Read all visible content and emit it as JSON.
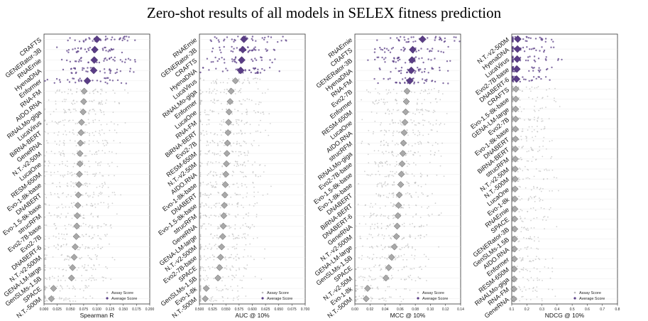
{
  "title": "Zero-shot results of all models in SELEX fitness prediction",
  "legend": {
    "assay": "Assay Score",
    "average": "Average Score"
  },
  "colors": {
    "top": "#5a3d86",
    "other": "#8e8e8e",
    "otherFill": "#a9a9a9",
    "dot": "#bdbdbd"
  },
  "chart_data": [
    {
      "type": "scatter",
      "xlabel": "Spearman R",
      "xlim": [
        0.0,
        0.2
      ],
      "ticks": [
        "0.000",
        "0.025",
        "0.050",
        "0.075",
        "0.100",
        "0.125",
        "0.150",
        "0.175",
        "0.200"
      ],
      "models": [
        "CRAFTS",
        "GENERator-3B",
        "RNAErnie",
        "HyenaDNA",
        "Enformer",
        "RNA-FM",
        "AIDO.RNA",
        "RiNALMo-giga",
        "LucaVirus",
        "BiRNA-BERT",
        "GeneRNA",
        "N.T.-v2-50M",
        "LucaOne",
        "RESM-650M",
        "Evo-1-8k-base",
        "DNABERT",
        "Evo-1.5-8k-base",
        "strucRFM",
        "Evo2-7B-base",
        "Evo2-7B",
        "DNABERT-6",
        "N.T.-v2-500M",
        "GENA-LM-large",
        "GenSLMs-1.5B",
        "SPACE",
        "N.T.-500M"
      ],
      "averages": [
        0.1,
        0.096,
        0.095,
        0.094,
        0.082,
        0.076,
        0.075,
        0.074,
        0.071,
        0.07,
        0.069,
        0.068,
        0.068,
        0.067,
        0.066,
        0.065,
        0.064,
        0.063,
        0.062,
        0.061,
        0.059,
        0.057,
        0.054,
        0.052,
        0.018,
        0.014
      ],
      "top_count": 5
    },
    {
      "type": "scatter",
      "xlabel": "AUC @ 10%",
      "xlim": [
        0.5,
        0.7
      ],
      "ticks": [
        "0.500",
        "0.525",
        "0.550",
        "0.575",
        "0.600",
        "0.625",
        "0.650",
        "0.675",
        "0.700"
      ],
      "models": [
        "RNAErnie",
        "GENERator-3B",
        "CRAFTS",
        "HyenaDNA",
        "LucaVirus",
        "RiNALMo-giga",
        "Enformer",
        "LucaOne",
        "RNA-FM",
        "BiRNA-BERT",
        "Evo2-7B",
        "RESM-650M",
        "N.T.-v2-50M",
        "AIDO.RNA",
        "Evo-1-8k-base",
        "DNABERT",
        "Evo-1.5-8k-base",
        "strucRFM",
        "GeneRNA",
        "GENA-LM-large",
        "N.T.-v2-500M",
        "Evo2-7B-base",
        "SPACE",
        "GenSLMs-1.5B",
        "Evo-1-8k",
        "N.T.-500M"
      ],
      "averages": [
        0.584,
        0.582,
        0.58,
        0.578,
        0.568,
        0.56,
        0.558,
        0.556,
        0.555,
        0.554,
        0.553,
        0.552,
        0.551,
        0.55,
        0.549,
        0.548,
        0.547,
        0.546,
        0.545,
        0.544,
        0.542,
        0.54,
        0.538,
        0.535,
        0.513,
        0.511
      ],
      "top_count": 4
    },
    {
      "type": "scatter",
      "xlabel": "MCC @ 10%",
      "xlim": [
        0.0,
        0.15
      ],
      "ticks": [
        "0.00",
        "0.02",
        "0.04",
        "0.06",
        "0.08",
        "0.10",
        "0.12",
        "0.14"
      ],
      "models": [
        "RNAErnie",
        "CRAFTS",
        "GENERator-3B",
        "HyenaDNA",
        "RNA-FM",
        "Evo2-7B",
        "Enformer",
        "RESM-650M",
        "LucaOne",
        "AIDO.RNA",
        "strucRFM",
        "RiNALMo-giga",
        "Evo2-7B-base",
        "Evo-1.5-8k-base",
        "Evo-1-8k-base",
        "DNABERT",
        "BiRNA-BERT",
        "DNABERT-6",
        "GeneRNA",
        "N.T.-v2-500M",
        "GENA-LM-large",
        "GenSLMs-1.5B",
        "SPACE",
        "N.T.-v2-50M",
        "Evo-1-8k",
        "N.T.-500M"
      ],
      "averages": [
        0.096,
        0.082,
        0.081,
        0.08,
        0.078,
        0.074,
        0.073,
        0.072,
        0.071,
        0.07,
        0.069,
        0.068,
        0.067,
        0.066,
        0.065,
        0.063,
        0.062,
        0.061,
        0.06,
        0.059,
        0.056,
        0.052,
        0.048,
        0.044,
        0.018,
        0.016
      ],
      "top_count": 5
    },
    {
      "type": "scatter",
      "xlabel": "NDCG @ 10%",
      "xlim": [
        0.1,
        0.8
      ],
      "ticks": [
        "0.1",
        "0.2",
        "0.3",
        "0.4",
        "0.5",
        "0.6",
        "0.7",
        "0.8"
      ],
      "models": [
        "N.T.-v2-500M",
        "HyenaDNA",
        "LucaVirus",
        "Evo2-7B-base",
        "DNABERT-6",
        "CRAFTS",
        "Evo-1.5-8k-base",
        "GENA-LM-large",
        "Evo2-7B",
        "Evo-1-8k-base",
        "DNABERT",
        "BiRNA-BERT",
        "strucRFM",
        "N.T.-v2-50M",
        "N.T.-500M",
        "LucaOne",
        "Evo-1-8k",
        "RNAErnie",
        "SPACE",
        "GENERator-3B",
        "GenSLMs-1.5B",
        "AIDO.RNA",
        "Enformer",
        "RESM-650M",
        "RiNALMo-giga",
        "RNA-FM",
        "GeneRNA"
      ],
      "averages": [
        0.14,
        0.138,
        0.136,
        0.134,
        0.132,
        0.128,
        0.127,
        0.126,
        0.126,
        0.125,
        0.125,
        0.124,
        0.124,
        0.123,
        0.123,
        0.122,
        0.121,
        0.121,
        0.12,
        0.12,
        0.119,
        0.118,
        0.118,
        0.117,
        0.116,
        0.115,
        0.114
      ],
      "top_count": 5
    }
  ]
}
